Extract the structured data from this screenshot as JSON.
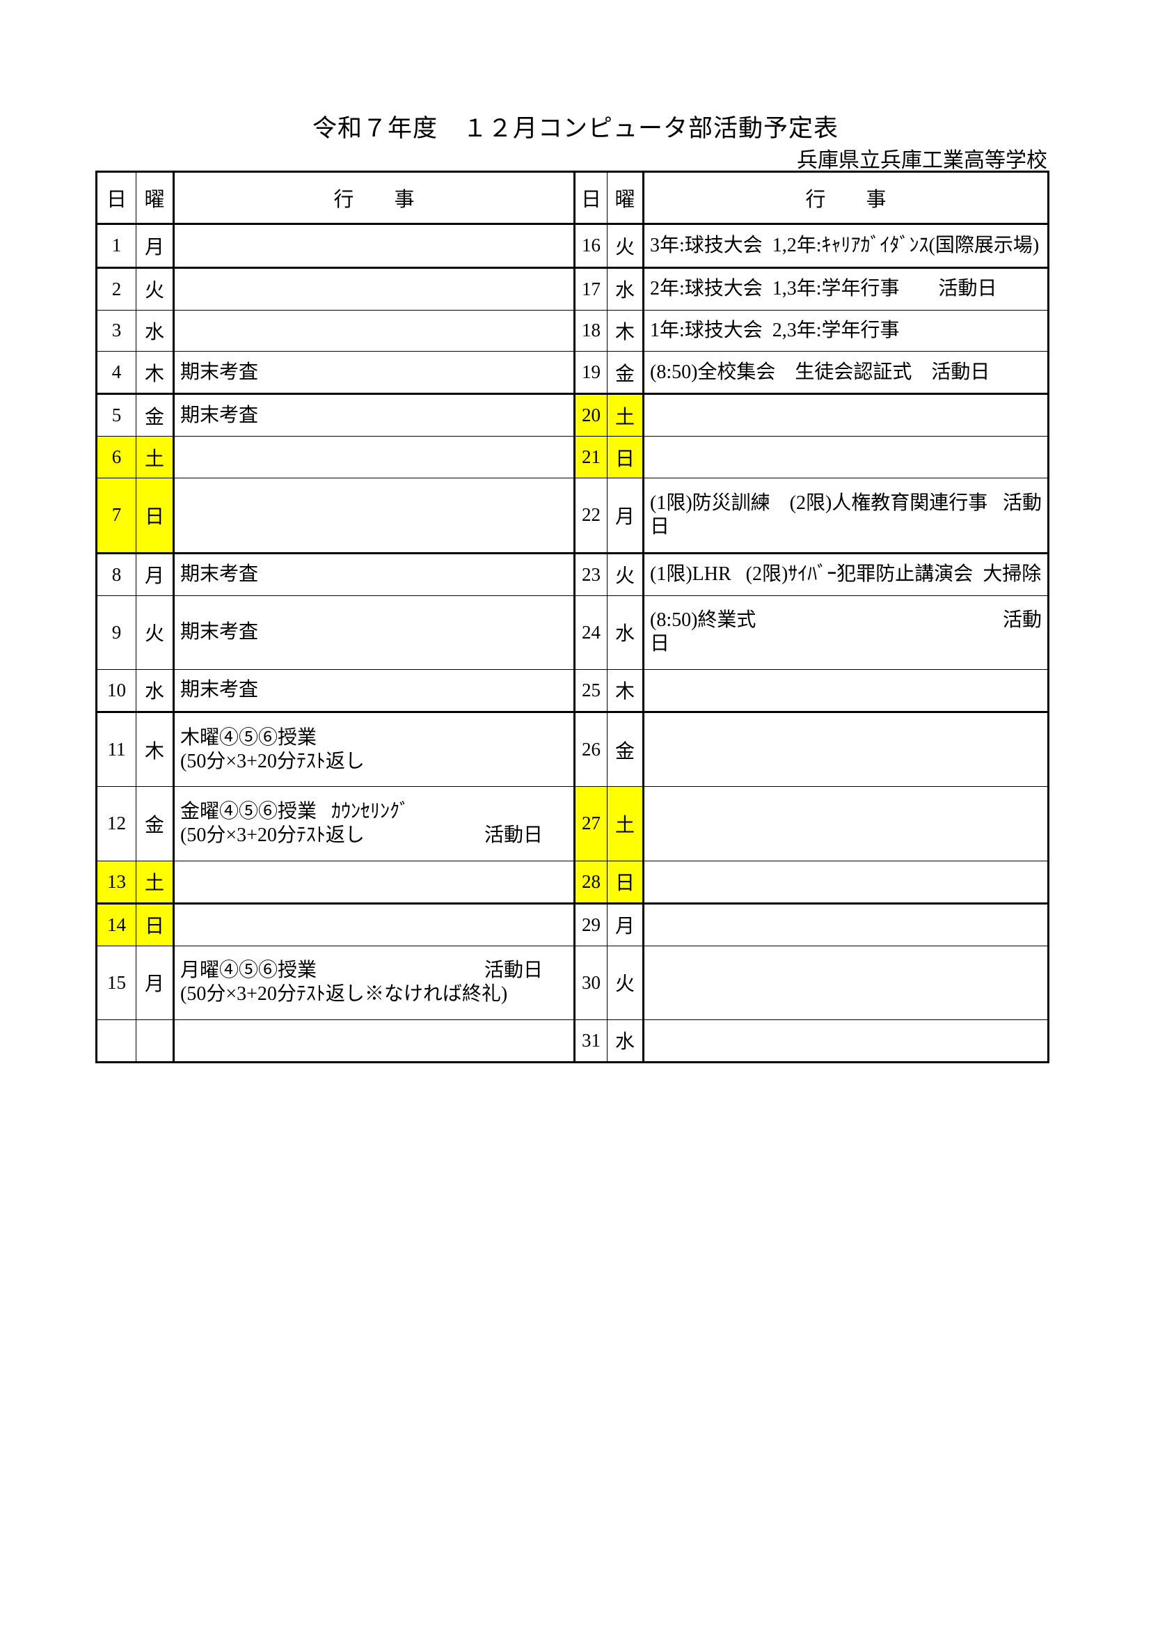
{
  "title": "令和７年度　１２月コンピュータ部活動予定表",
  "subtitle": "兵庫県立兵庫工業高等学校",
  "colors": {
    "highlight": "#ffff00",
    "border": "#000000",
    "text": "#000000"
  },
  "headers": {
    "day": "日",
    "weekday": "曜",
    "event": "行        事"
  },
  "rows": [
    {
      "thick": true,
      "left": {
        "day": "1",
        "wd": "月",
        "hl": false,
        "lines": []
      },
      "right": {
        "day": "16",
        "wd": "火",
        "hl": false,
        "lines": [
          {
            "text": "3年:球技大会  1,2年:ｷｬﾘｱｶﾞｲﾀﾞﾝｽ(国際展示場)"
          }
        ]
      }
    },
    {
      "thick": false,
      "left": {
        "day": "2",
        "wd": "火",
        "hl": false,
        "lines": []
      },
      "right": {
        "day": "17",
        "wd": "水",
        "hl": false,
        "lines": [
          {
            "text": "2年:球技大会  1,3年:学年行事        活動日"
          }
        ]
      }
    },
    {
      "thick": false,
      "left": {
        "day": "3",
        "wd": "水",
        "hl": false,
        "lines": []
      },
      "right": {
        "day": "18",
        "wd": "木",
        "hl": false,
        "lines": [
          {
            "text": "1年:球技大会  2,3年:学年行事"
          }
        ]
      }
    },
    {
      "thick": true,
      "left": {
        "day": "4",
        "wd": "木",
        "hl": false,
        "lines": [
          {
            "text": "期末考査"
          }
        ]
      },
      "right": {
        "day": "19",
        "wd": "金",
        "hl": false,
        "lines": [
          {
            "text": "(8:50)全校集会    生徒会認証式    活動日"
          }
        ]
      }
    },
    {
      "thick": false,
      "left": {
        "day": "5",
        "wd": "金",
        "hl": false,
        "lines": [
          {
            "text": "期末考査"
          }
        ]
      },
      "right": {
        "day": "20",
        "wd": "土",
        "hl": true,
        "lines": []
      }
    },
    {
      "thick": false,
      "left": {
        "day": "6",
        "wd": "土",
        "hl": true,
        "lines": []
      },
      "right": {
        "day": "21",
        "wd": "日",
        "hl": true,
        "lines": []
      }
    },
    {
      "thick": true,
      "left": {
        "day": "7",
        "wd": "日",
        "hl": true,
        "lines": []
      },
      "right": {
        "day": "22",
        "wd": "月",
        "hl": false,
        "lines": [
          {
            "text": "(1限)防災訓練    (2限)人権教育関連行事",
            "right": "活動"
          },
          {
            "text": "日"
          }
        ]
      }
    },
    {
      "thick": false,
      "left": {
        "day": "8",
        "wd": "月",
        "hl": false,
        "lines": [
          {
            "text": "期末考査"
          }
        ]
      },
      "right": {
        "day": "23",
        "wd": "火",
        "hl": false,
        "lines": [
          {
            "text": "(1限)LHR   (2限)ｻｲﾊﾞｰ犯罪防止講演会  大掃除"
          }
        ]
      }
    },
    {
      "thick": false,
      "left": {
        "day": "9",
        "wd": "火",
        "hl": false,
        "lines": [
          {
            "text": "期末考査"
          }
        ]
      },
      "right": {
        "day": "24",
        "wd": "水",
        "hl": false,
        "lines": [
          {
            "text": "(8:50)終業式",
            "right": "活動"
          },
          {
            "text": "日"
          }
        ]
      }
    },
    {
      "thick": true,
      "left": {
        "day": "10",
        "wd": "水",
        "hl": false,
        "lines": [
          {
            "text": "期末考査"
          }
        ]
      },
      "right": {
        "day": "25",
        "wd": "木",
        "hl": false,
        "lines": []
      }
    },
    {
      "thick": false,
      "left": {
        "day": "11",
        "wd": "木",
        "hl": false,
        "lines": [
          {
            "text": "木曜④⑤⑥授業"
          },
          {
            "text": "(50分×3+20分ﾃｽﾄ返し"
          }
        ]
      },
      "right": {
        "day": "26",
        "wd": "金",
        "hl": false,
        "lines": []
      }
    },
    {
      "thick": false,
      "left": {
        "day": "12",
        "wd": "金",
        "hl": false,
        "lines": [
          {
            "text": "金曜④⑤⑥授業   ｶｳﾝｾﾘﾝｸﾞ"
          },
          {
            "text": "(50分×3+20分ﾃｽﾄ返し",
            "right": "活動日"
          }
        ]
      },
      "right": {
        "day": "27",
        "wd": "土",
        "hl": true,
        "lines": []
      }
    },
    {
      "thick": true,
      "left": {
        "day": "13",
        "wd": "土",
        "hl": true,
        "lines": []
      },
      "right": {
        "day": "28",
        "wd": "日",
        "hl": true,
        "lines": []
      }
    },
    {
      "thick": false,
      "left": {
        "day": "14",
        "wd": "日",
        "hl": true,
        "lines": []
      },
      "right": {
        "day": "29",
        "wd": "月",
        "hl": false,
        "lines": []
      }
    },
    {
      "thick": false,
      "left": {
        "day": "15",
        "wd": "月",
        "hl": false,
        "lines": [
          {
            "text": "月曜④⑤⑥授業",
            "right": "活動日"
          },
          {
            "text": "(50分×3+20分ﾃｽﾄ返し※なければ終礼)"
          }
        ]
      },
      "right": {
        "day": "30",
        "wd": "火",
        "hl": false,
        "lines": []
      }
    },
    {
      "thick": false,
      "left": {
        "day": "",
        "wd": "",
        "hl": false,
        "lines": []
      },
      "right": {
        "day": "31",
        "wd": "水",
        "hl": false,
        "lines": []
      }
    }
  ]
}
